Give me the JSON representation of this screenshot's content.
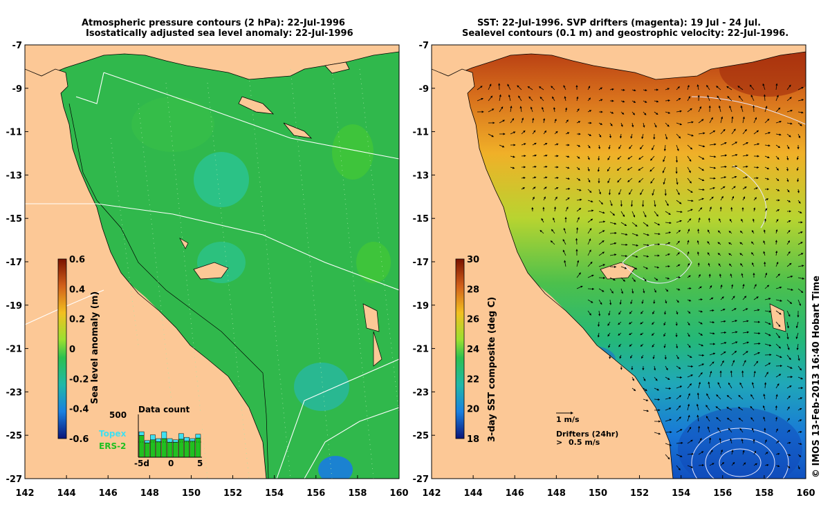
{
  "left_panel": {
    "title_line1": "Atmospheric pressure contours (2 hPa): 22-Jul-1996",
    "title_line2": "Isostatically adjusted sea level anomaly: 22-Jul-1996",
    "colorbar_label": "Sea level anomaly (m)",
    "colorbar_ticks": [
      "0.6",
      "0.4",
      "0.2",
      "0",
      "-0.2",
      "-0.4",
      "-0.6"
    ],
    "inset": {
      "title": "Data count",
      "ymax_label": "500",
      "xticks": [
        "-5d",
        "0",
        "5"
      ],
      "legend_topex": "Topex",
      "legend_ers2": "ERS-2",
      "topex_color": "#40e0f0",
      "ers2_color": "#20c020",
      "bars_topex": [
        60,
        40,
        80,
        50,
        110,
        60,
        40,
        90,
        60,
        40,
        60
      ],
      "bars_ers2": [
        350,
        230,
        280,
        250,
        300,
        240,
        240,
        290,
        260,
        260,
        310
      ]
    }
  },
  "right_panel": {
    "title_line1": "SST: 22-Jul-1996. SVP drifters (magenta): 19 Jul - 24 Jul.",
    "title_line2": "Sealevel contours (0.1 m) and geostrophic velocity: 22-Jul-1996.",
    "colorbar_label": "3-day SST composite (deg C)",
    "colorbar_ticks": [
      "30",
      "28",
      "26",
      "24",
      "22",
      "20",
      "18"
    ],
    "velocity_legend": "1 m/s",
    "drifters_legend": "Drifters (24hr)",
    "drifters_speed": "0.5 m/s",
    "drifter_color": "#ff40ff"
  },
  "axes": {
    "lat_labels": [
      "-7",
      "-9",
      "-11",
      "-13",
      "-15",
      "-17",
      "-19",
      "-21",
      "-23",
      "-25",
      "-27"
    ],
    "lon_labels": [
      "142",
      "144",
      "146",
      "148",
      "150",
      "152",
      "154",
      "156",
      "158",
      "160"
    ]
  },
  "credit": "© IMOS 13-Feb-2013 16:40 Hobart Time",
  "colors": {
    "land": "#fcc896",
    "sea_green": "#2db84a",
    "anomaly_teal": "#21c49a",
    "sst_warm": "#b83a10",
    "sst_cool": "#1060d0"
  }
}
